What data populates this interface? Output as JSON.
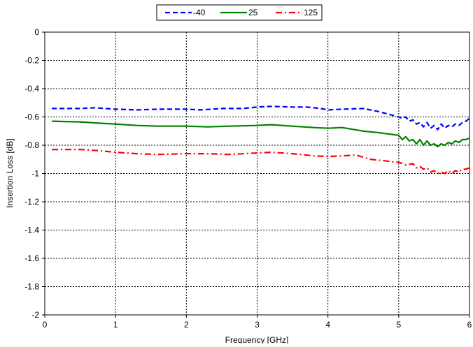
{
  "chart_data": {
    "type": "line",
    "title": "",
    "xlabel": "Frequency [GHz]",
    "ylabel": "Insertion Loss [dB]",
    "xlim": [
      0,
      6
    ],
    "ylim": [
      -2,
      0
    ],
    "x_ticks": [
      "0",
      "1",
      "2",
      "3",
      "4",
      "5",
      "6"
    ],
    "y_ticks": [
      "0",
      "-0.2",
      "-0.4",
      "-0.6",
      "-0.8",
      "-1",
      "-1.2",
      "-1.4",
      "-1.6",
      "-1.8",
      "-2"
    ],
    "grid": true,
    "legend_position": "top-center",
    "series": [
      {
        "name": "-40",
        "color": "#0000ff",
        "dash": "dashed",
        "x": [
          0.1,
          0.5,
          0.7,
          1.0,
          1.3,
          1.6,
          2.0,
          2.2,
          2.5,
          2.8,
          3.0,
          3.2,
          3.5,
          3.7,
          3.9,
          4.0,
          4.2,
          4.5,
          4.7,
          4.85,
          5.0,
          5.05,
          5.1,
          5.15,
          5.2,
          5.25,
          5.3,
          5.35,
          5.4,
          5.45,
          5.5,
          5.55,
          5.6,
          5.65,
          5.7,
          5.75,
          5.8,
          5.85,
          5.9,
          5.95,
          6.0
        ],
        "values": [
          -0.54,
          -0.54,
          -0.535,
          -0.545,
          -0.55,
          -0.545,
          -0.545,
          -0.55,
          -0.54,
          -0.54,
          -0.53,
          -0.525,
          -0.53,
          -0.53,
          -0.54,
          -0.55,
          -0.545,
          -0.54,
          -0.56,
          -0.58,
          -0.6,
          -0.61,
          -0.6,
          -0.63,
          -0.62,
          -0.65,
          -0.64,
          -0.67,
          -0.64,
          -0.68,
          -0.66,
          -0.69,
          -0.65,
          -0.68,
          -0.66,
          -0.67,
          -0.65,
          -0.66,
          -0.64,
          -0.63,
          -0.61
        ]
      },
      {
        "name": "25",
        "color": "#008000",
        "dash": "solid",
        "x": [
          0.1,
          0.5,
          0.8,
          1.0,
          1.3,
          1.6,
          2.0,
          2.3,
          2.6,
          3.0,
          3.2,
          3.5,
          3.8,
          4.0,
          4.2,
          4.5,
          4.7,
          4.85,
          5.0,
          5.05,
          5.1,
          5.15,
          5.2,
          5.25,
          5.3,
          5.35,
          5.4,
          5.45,
          5.5,
          5.55,
          5.6,
          5.65,
          5.7,
          5.75,
          5.8,
          5.85,
          5.9,
          5.95,
          6.0
        ],
        "values": [
          -0.63,
          -0.635,
          -0.645,
          -0.65,
          -0.66,
          -0.665,
          -0.665,
          -0.67,
          -0.665,
          -0.66,
          -0.655,
          -0.665,
          -0.675,
          -0.68,
          -0.675,
          -0.7,
          -0.71,
          -0.72,
          -0.73,
          -0.76,
          -0.74,
          -0.77,
          -0.76,
          -0.79,
          -0.76,
          -0.8,
          -0.77,
          -0.8,
          -0.79,
          -0.81,
          -0.79,
          -0.8,
          -0.78,
          -0.79,
          -0.77,
          -0.78,
          -0.76,
          -0.76,
          -0.75
        ]
      },
      {
        "name": "125",
        "color": "#ff0000",
        "dash": "dashdot",
        "x": [
          0.1,
          0.5,
          0.8,
          1.0,
          1.3,
          1.6,
          2.0,
          2.3,
          2.6,
          3.0,
          3.2,
          3.5,
          3.8,
          4.0,
          4.2,
          4.4,
          4.6,
          4.8,
          4.95,
          5.0,
          5.1,
          5.2,
          5.25,
          5.3,
          5.35,
          5.4,
          5.45,
          5.5,
          5.55,
          5.6,
          5.65,
          5.7,
          5.75,
          5.8,
          5.85,
          5.9,
          5.95,
          6.0
        ],
        "values": [
          -0.83,
          -0.83,
          -0.84,
          -0.85,
          -0.86,
          -0.865,
          -0.86,
          -0.86,
          -0.865,
          -0.855,
          -0.85,
          -0.86,
          -0.875,
          -0.88,
          -0.875,
          -0.87,
          -0.9,
          -0.91,
          -0.92,
          -0.92,
          -0.94,
          -0.93,
          -0.96,
          -0.95,
          -0.97,
          -0.96,
          -0.99,
          -0.98,
          -1.0,
          -0.99,
          -1.0,
          -0.98,
          -1.0,
          -0.98,
          -0.99,
          -0.97,
          -0.97,
          -0.96
        ]
      }
    ]
  }
}
